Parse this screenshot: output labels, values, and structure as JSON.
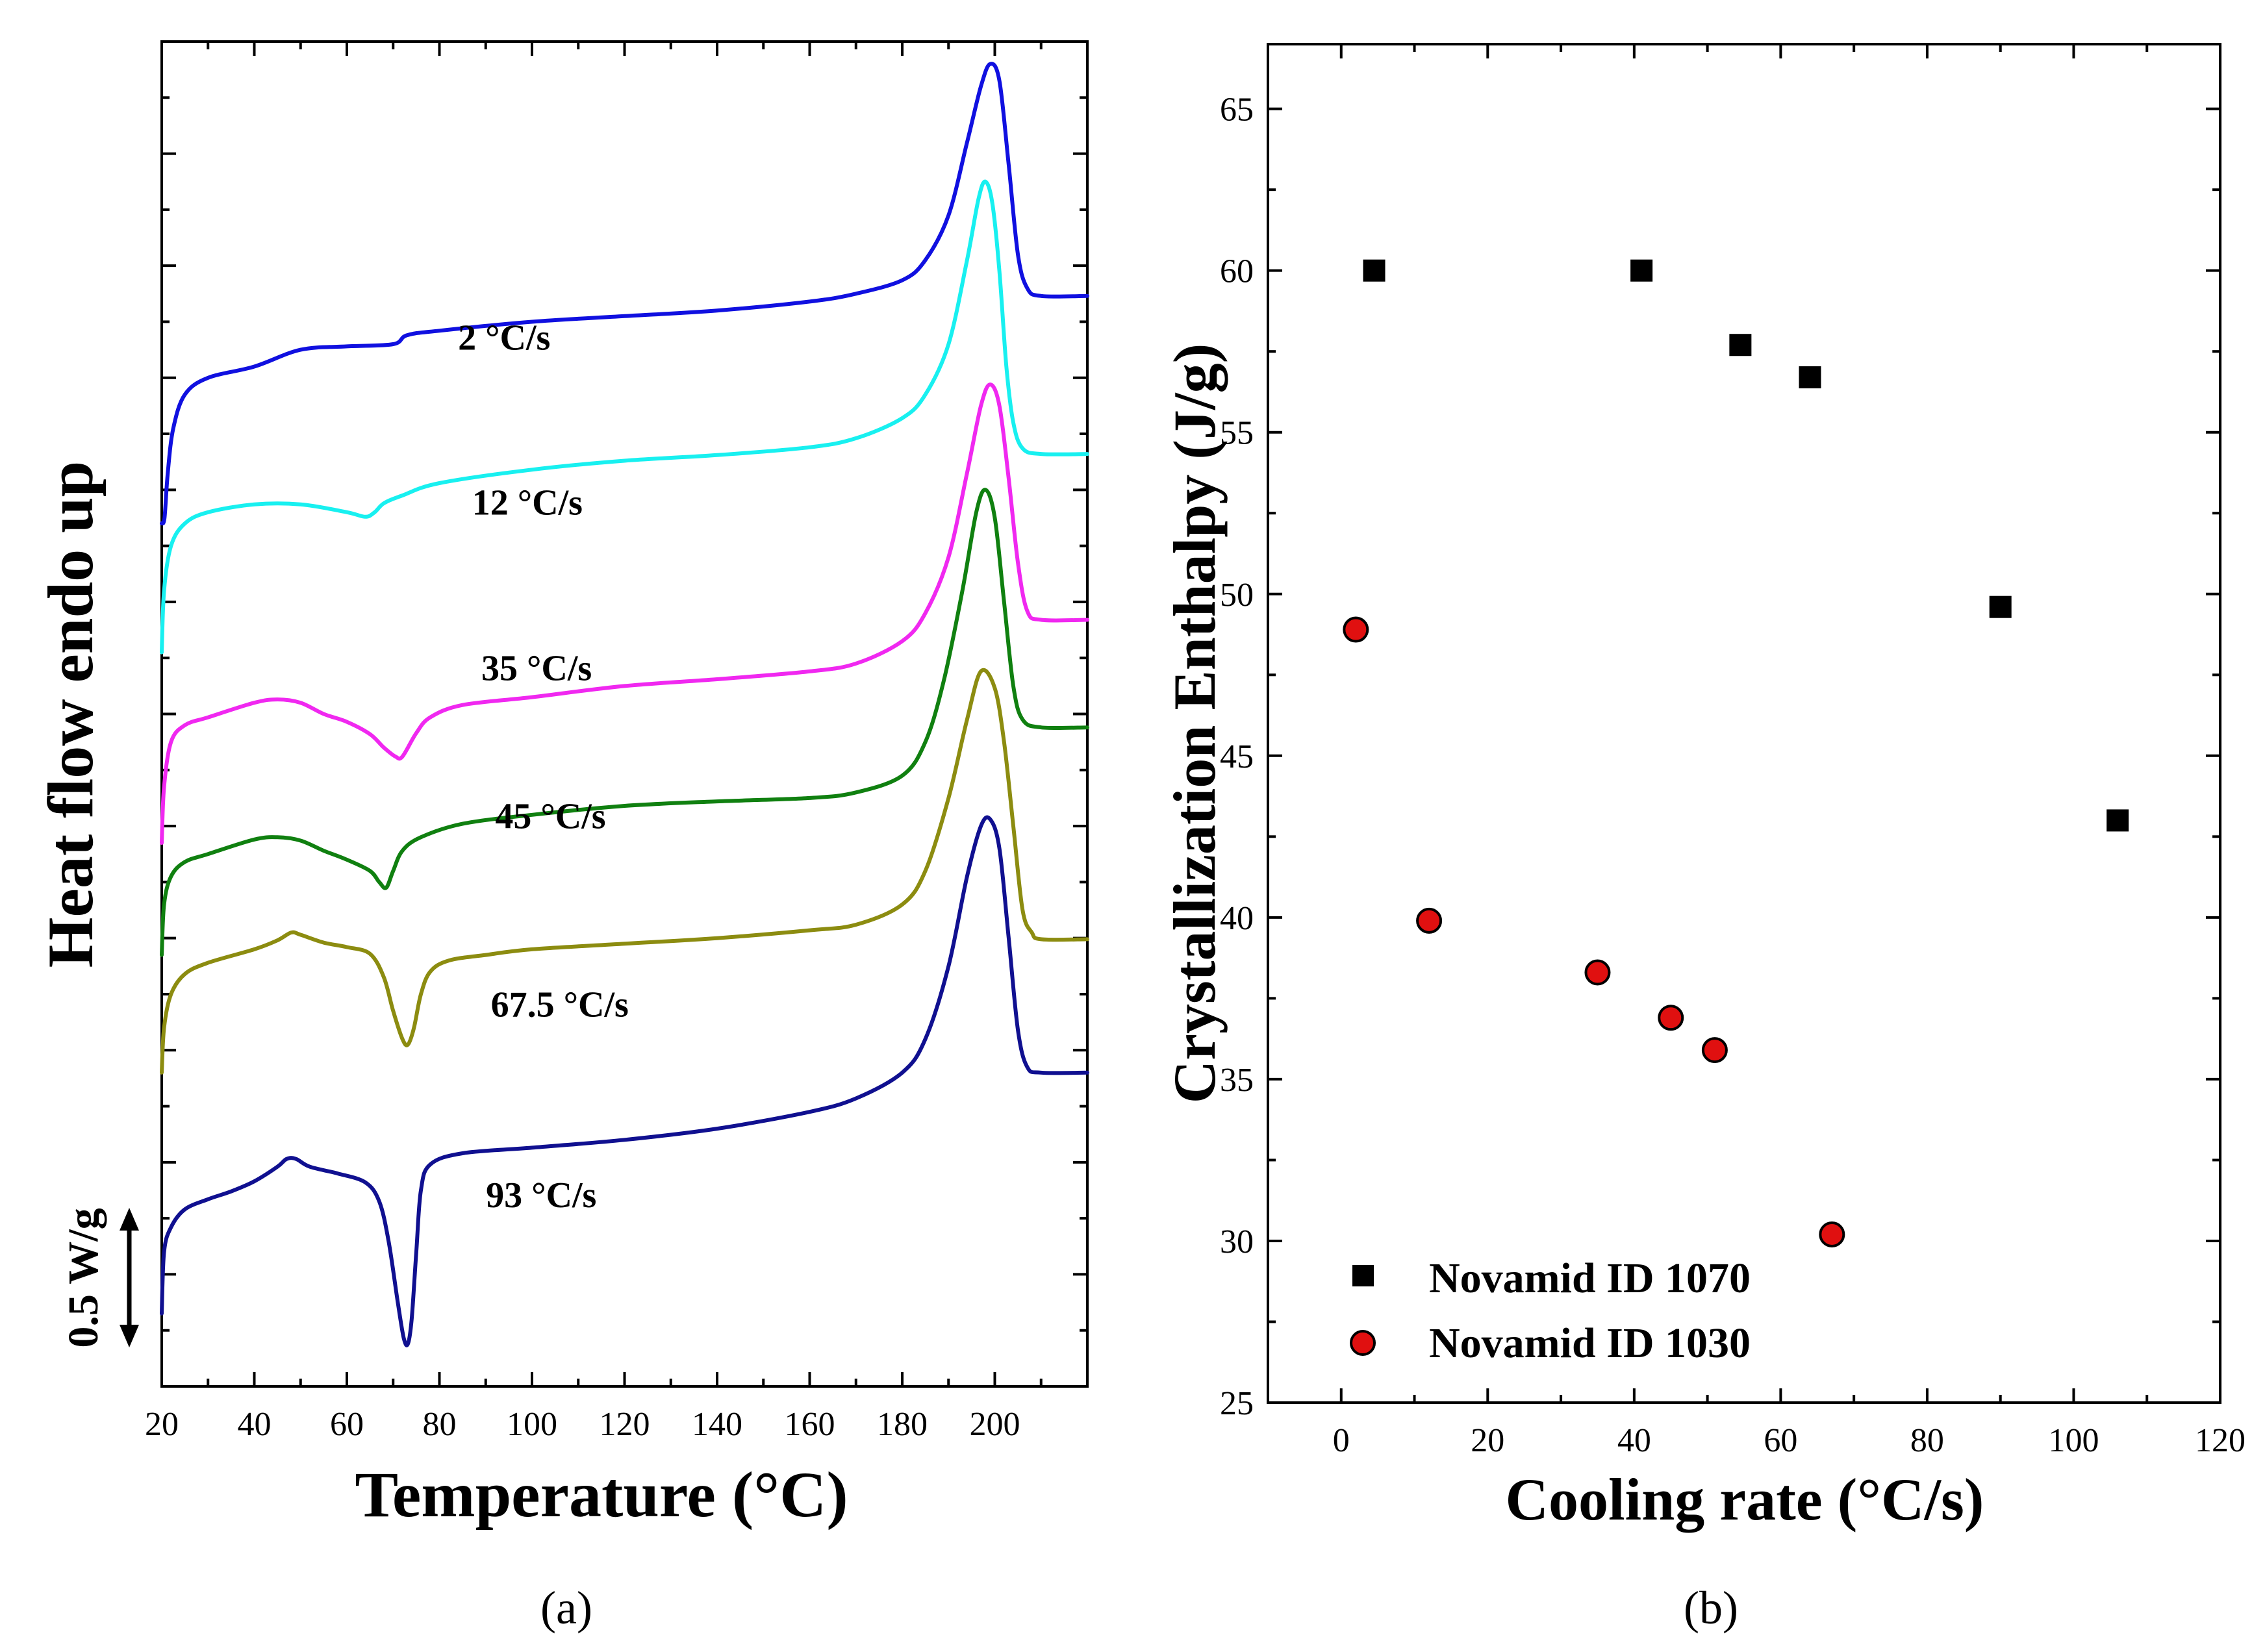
{
  "colors": {
    "axis": "#000000",
    "c2": "#1010e0",
    "c12": "#18f0f0",
    "c35": "#f028f0",
    "c45": "#108010",
    "c67": "#8c8c10",
    "c93": "#101090",
    "square": "#000000",
    "circle": "#e01010"
  },
  "chart_data": [
    {
      "type": "line",
      "panel_label": "(a)",
      "xlabel": "Temperature (°C)",
      "ylabel": "Heat flow endo up",
      "xlim": [
        20,
        220
      ],
      "xticks": [
        20,
        40,
        60,
        80,
        100,
        120,
        140,
        160,
        180,
        200
      ],
      "ylim": [
        0,
        12
      ],
      "scale_bar": {
        "label": "0.5 W/g",
        "value": 0.5
      },
      "series": [
        {
          "name": "2 °C/s",
          "label": "2 °C/s",
          "color": "c2",
          "label_at": [
            94,
            9.25
          ],
          "points": [
            [
              20,
              7.7
            ],
            [
              20.6,
              7.75
            ],
            [
              21.3,
              8.15
            ],
            [
              22.5,
              8.55
            ],
            [
              25,
              8.85
            ],
            [
              30,
              9.0
            ],
            [
              40,
              9.1
            ],
            [
              50,
              9.25
            ],
            [
              60,
              9.28
            ],
            [
              70,
              9.3
            ],
            [
              73,
              9.38
            ],
            [
              80,
              9.42
            ],
            [
              100,
              9.5
            ],
            [
              120,
              9.55
            ],
            [
              140,
              9.6
            ],
            [
              160,
              9.68
            ],
            [
              170,
              9.75
            ],
            [
              180,
              9.87
            ],
            [
              185,
              10.05
            ],
            [
              190,
              10.45
            ],
            [
              194,
              11.1
            ],
            [
              197,
              11.6
            ],
            [
              199,
              11.8
            ],
            [
              201,
              11.65
            ],
            [
              203,
              10.9
            ],
            [
              205,
              10.1
            ],
            [
              207,
              9.8
            ],
            [
              210,
              9.73
            ],
            [
              220,
              9.73
            ]
          ]
        },
        {
          "name": "12 °C/s",
          "label": "12 °C/s",
          "color": "c12",
          "label_at": [
            99,
            7.78
          ],
          "points": [
            [
              20,
              6.55
            ],
            [
              20.5,
              7.1
            ],
            [
              22,
              7.5
            ],
            [
              25,
              7.7
            ],
            [
              30,
              7.8
            ],
            [
              40,
              7.87
            ],
            [
              50,
              7.87
            ],
            [
              60,
              7.8
            ],
            [
              64,
              7.76
            ],
            [
              66,
              7.8
            ],
            [
              68,
              7.88
            ],
            [
              72,
              7.95
            ],
            [
              80,
              8.06
            ],
            [
              100,
              8.18
            ],
            [
              120,
              8.26
            ],
            [
              140,
              8.31
            ],
            [
              160,
              8.38
            ],
            [
              170,
              8.46
            ],
            [
              180,
              8.64
            ],
            [
              185,
              8.85
            ],
            [
              190,
              9.3
            ],
            [
              194,
              10.05
            ],
            [
              196.5,
              10.6
            ],
            [
              198,
              10.75
            ],
            [
              199.5,
              10.55
            ],
            [
              201,
              9.95
            ],
            [
              202.5,
              9.1
            ],
            [
              204,
              8.6
            ],
            [
              206,
              8.37
            ],
            [
              210,
              8.32
            ],
            [
              220,
              8.32
            ]
          ]
        },
        {
          "name": "35 °C/s",
          "label": "35 °C/s",
          "color": "c35",
          "label_at": [
            101,
            6.3
          ],
          "points": [
            [
              20,
              4.85
            ],
            [
              20.5,
              5.35
            ],
            [
              22,
              5.75
            ],
            [
              25,
              5.9
            ],
            [
              30,
              5.97
            ],
            [
              40,
              6.1
            ],
            [
              45,
              6.13
            ],
            [
              50,
              6.1
            ],
            [
              55,
              6.0
            ],
            [
              60,
              5.93
            ],
            [
              65,
              5.82
            ],
            [
              68,
              5.7
            ],
            [
              70.5,
              5.62
            ],
            [
              72,
              5.62
            ],
            [
              75,
              5.83
            ],
            [
              78,
              5.97
            ],
            [
              85,
              6.08
            ],
            [
              100,
              6.15
            ],
            [
              120,
              6.25
            ],
            [
              140,
              6.31
            ],
            [
              160,
              6.38
            ],
            [
              170,
              6.45
            ],
            [
              180,
              6.65
            ],
            [
              185,
              6.9
            ],
            [
              190,
              7.4
            ],
            [
              194,
              8.15
            ],
            [
              197,
              8.75
            ],
            [
              199,
              8.94
            ],
            [
              201,
              8.75
            ],
            [
              203,
              8.1
            ],
            [
              205,
              7.35
            ],
            [
              207,
              6.92
            ],
            [
              210,
              6.84
            ],
            [
              220,
              6.84
            ]
          ]
        },
        {
          "name": "45 °C/s",
          "label": "45 °C/s",
          "color": "c45",
          "label_at": [
            104,
            4.98
          ],
          "points": [
            [
              20,
              3.85
            ],
            [
              20.5,
              4.3
            ],
            [
              22,
              4.55
            ],
            [
              25,
              4.68
            ],
            [
              30,
              4.75
            ],
            [
              40,
              4.88
            ],
            [
              45,
              4.9
            ],
            [
              50,
              4.87
            ],
            [
              55,
              4.78
            ],
            [
              60,
              4.7
            ],
            [
              65,
              4.6
            ],
            [
              67,
              4.5
            ],
            [
              68.5,
              4.45
            ],
            [
              70,
              4.6
            ],
            [
              72,
              4.78
            ],
            [
              76,
              4.9
            ],
            [
              85,
              5.02
            ],
            [
              100,
              5.1
            ],
            [
              120,
              5.18
            ],
            [
              140,
              5.22
            ],
            [
              160,
              5.25
            ],
            [
              170,
              5.3
            ],
            [
              180,
              5.45
            ],
            [
              185,
              5.75
            ],
            [
              189,
              6.3
            ],
            [
              193,
              7.1
            ],
            [
              196,
              7.8
            ],
            [
              198,
              8.0
            ],
            [
              200,
              7.75
            ],
            [
              202,
              7.0
            ],
            [
              204,
              6.25
            ],
            [
              206,
              5.95
            ],
            [
              210,
              5.88
            ],
            [
              220,
              5.88
            ]
          ]
        },
        {
          "name": "67.5 °C/s",
          "label": "67.5 °C/s",
          "color": "c67",
          "label_at": [
            106,
            3.3
          ],
          "points": [
            [
              20,
              2.8
            ],
            [
              20.5,
              3.2
            ],
            [
              22,
              3.5
            ],
            [
              25,
              3.68
            ],
            [
              30,
              3.78
            ],
            [
              40,
              3.9
            ],
            [
              45,
              3.98
            ],
            [
              48,
              4.05
            ],
            [
              50,
              4.03
            ],
            [
              55,
              3.96
            ],
            [
              60,
              3.92
            ],
            [
              65,
              3.86
            ],
            [
              68,
              3.65
            ],
            [
              70,
              3.35
            ],
            [
              72,
              3.1
            ],
            [
              73.2,
              3.05
            ],
            [
              74.5,
              3.2
            ],
            [
              76,
              3.5
            ],
            [
              78,
              3.7
            ],
            [
              82,
              3.8
            ],
            [
              90,
              3.85
            ],
            [
              100,
              3.9
            ],
            [
              120,
              3.95
            ],
            [
              140,
              4.0
            ],
            [
              160,
              4.07
            ],
            [
              170,
              4.12
            ],
            [
              180,
              4.3
            ],
            [
              185,
              4.6
            ],
            [
              190,
              5.25
            ],
            [
              194,
              5.95
            ],
            [
              197,
              6.38
            ],
            [
              200,
              6.23
            ],
            [
              202,
              5.75
            ],
            [
              204,
              5.0
            ],
            [
              206,
              4.25
            ],
            [
              208,
              4.05
            ],
            [
              210,
              3.99
            ],
            [
              220,
              3.99
            ]
          ]
        },
        {
          "name": "93 °C/s",
          "label": "93 °C/s",
          "color": "c93",
          "label_at": [
            102,
            1.6
          ],
          "points": [
            [
              20,
              0.65
            ],
            [
              20.5,
              1.2
            ],
            [
              22,
              1.42
            ],
            [
              25,
              1.58
            ],
            [
              30,
              1.67
            ],
            [
              35,
              1.74
            ],
            [
              40,
              1.83
            ],
            [
              45,
              1.96
            ],
            [
              47,
              2.03
            ],
            [
              49,
              2.03
            ],
            [
              52,
              1.96
            ],
            [
              58,
              1.9
            ],
            [
              64,
              1.82
            ],
            [
              67,
              1.65
            ],
            [
              69,
              1.3
            ],
            [
              71,
              0.75
            ],
            [
              72.3,
              0.43
            ],
            [
              73.2,
              0.38
            ],
            [
              74,
              0.6
            ],
            [
              75,
              1.2
            ],
            [
              76,
              1.75
            ],
            [
              78,
              1.98
            ],
            [
              85,
              2.08
            ],
            [
              100,
              2.13
            ],
            [
              120,
              2.2
            ],
            [
              140,
              2.3
            ],
            [
              160,
              2.45
            ],
            [
              170,
              2.57
            ],
            [
              180,
              2.8
            ],
            [
              185,
              3.1
            ],
            [
              190,
              3.75
            ],
            [
              194,
              4.55
            ],
            [
              197,
              5.0
            ],
            [
              199,
              5.06
            ],
            [
              201,
              4.8
            ],
            [
              203,
              4.0
            ],
            [
              205,
              3.18
            ],
            [
              207,
              2.85
            ],
            [
              210,
              2.8
            ],
            [
              220,
              2.8
            ]
          ]
        }
      ]
    },
    {
      "type": "scatter",
      "panel_label": "(b)",
      "xlabel": "Cooling rate (°C/s)",
      "ylabel": "Crystallization Enthalpy (J/g)",
      "xlim": [
        -10,
        120
      ],
      "ylim": [
        25,
        67
      ],
      "xticks": [
        0,
        20,
        40,
        60,
        80,
        100,
        120
      ],
      "yticks": [
        25,
        30,
        35,
        40,
        45,
        50,
        55,
        60,
        65
      ],
      "legend": "bottom-left",
      "series": [
        {
          "name": "Novamid ID 1070",
          "marker": "square",
          "color": "square",
          "x": [
            4.5,
            41,
            54.5,
            64,
            90,
            106
          ],
          "y": [
            60.0,
            60.0,
            57.7,
            56.7,
            49.6,
            43.0
          ]
        },
        {
          "name": "Novamid ID 1030",
          "marker": "circle",
          "color": "circle",
          "x": [
            2,
            12,
            35,
            45,
            51,
            67
          ],
          "y": [
            48.9,
            39.9,
            38.3,
            36.9,
            35.9,
            30.2
          ]
        }
      ]
    }
  ]
}
